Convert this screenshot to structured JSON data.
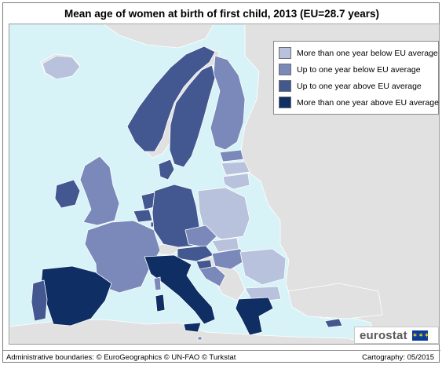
{
  "title": "Mean age of women at birth of first child, 2013 (EU=28.7 years)",
  "legend": [
    {
      "label": "More than one year below EU average",
      "color": "#b9c2dc"
    },
    {
      "label": "Up to one year below EU average",
      "color": "#7a89b9"
    },
    {
      "label": "Up to one year above EU average",
      "color": "#435790"
    },
    {
      "label": "More than one year above EU average",
      "color": "#0e2e64"
    }
  ],
  "colors": {
    "sea": "#d7f3f7",
    "no_data": "#e1e1e1",
    "border": "#ffffff"
  },
  "logo": {
    "text": "eurostat",
    "flag_icon": "eu-flag-icon"
  },
  "footer": {
    "left": "Administrative boundaries: © EuroGeographics © UN-FAO © Turkstat",
    "right": "Cartography: 05/2015"
  }
}
